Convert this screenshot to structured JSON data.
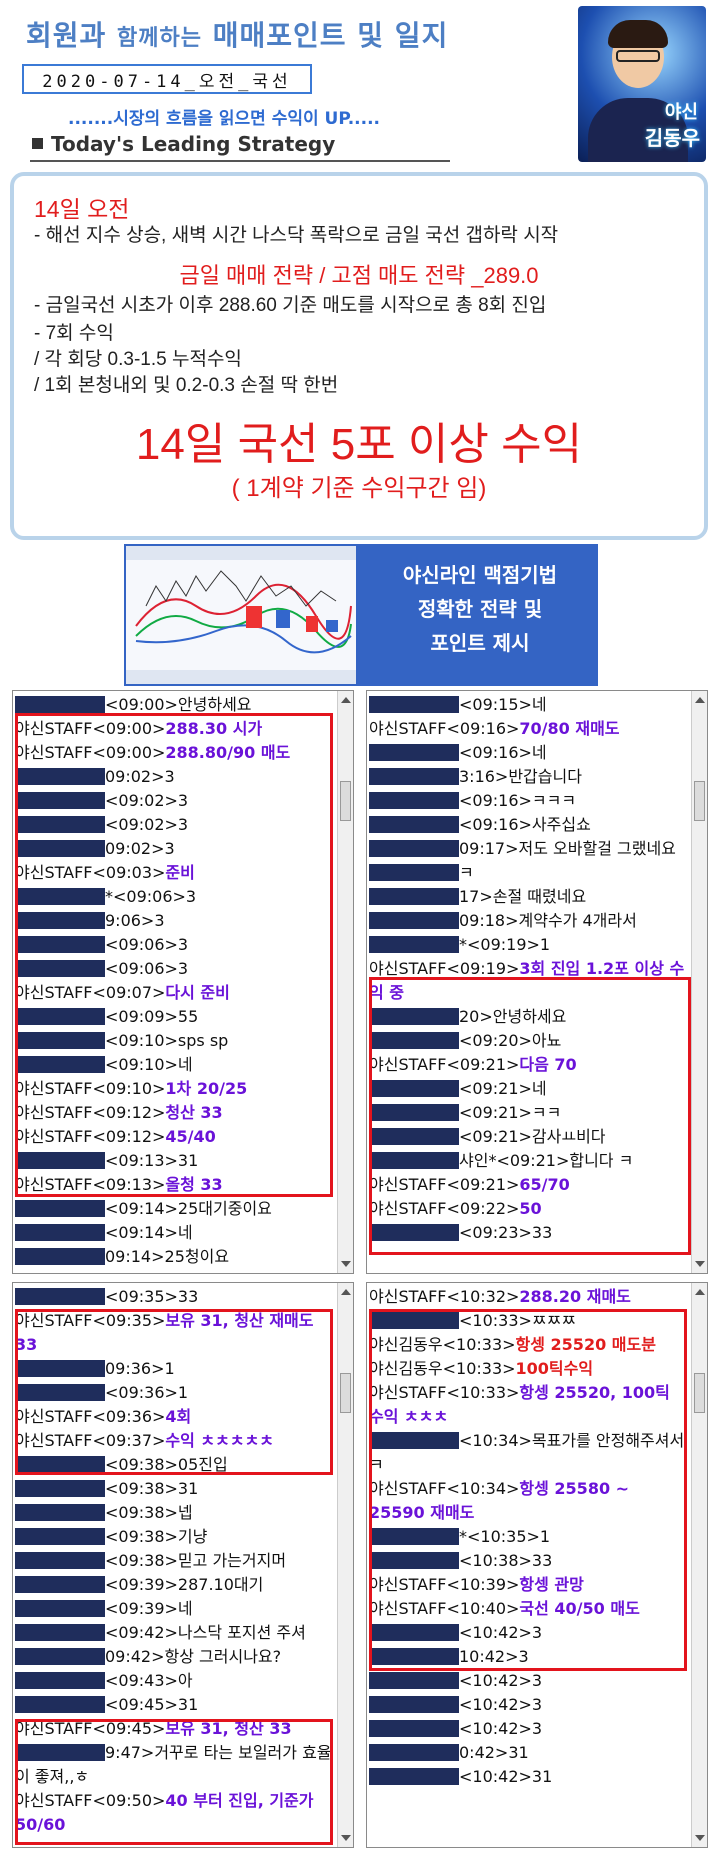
{
  "header": {
    "title_a": "회원과",
    "title_b": "함께하는",
    "title_c": "매매포인트 및 일지",
    "date": "2020-07-14_오전_국선",
    "slogan": ".......시장의 흐름을 읽으면 수익이 UP.....",
    "strategy": "Today's Leading Strategy",
    "avatar_name1": "야신",
    "avatar_name2": "김동우"
  },
  "strategy": {
    "date": "14일 오전",
    "note": "-    해선 지수 상승, 새벽 시간 나스닥 폭락으로 금일 국선 갭하락 시작",
    "heading": "금일 매매 전략   /   고점 매도 전략 _289.0",
    "lines": [
      "-    금일국선 시초가 이후 288.60 기준  매도를  시작으로 총 8회 진입",
      "-    7회 수익",
      "  / 각 회당 0.3-1.5 누적수익",
      "  / 1회 본청내외 및 0.2-0.3 손절 딱 한번"
    ],
    "big": "14일 국선 5포 이상 수익",
    "sub": "( 1계약 기준 수익구간 임)"
  },
  "banner": {
    "line1": "야신라인  맥점기법",
    "line2": "정확한 전략 및",
    "line3": "포인트 제시"
  },
  "panel1": [
    {
      "u": "",
      "t": "<09:00>안녕하세요",
      "m": "",
      "c": ""
    },
    {
      "u": "야신STAFF",
      "t": "<09:00>",
      "m": "288.30 시가",
      "c": "p"
    },
    {
      "u": "야신STAFF",
      "t": "<09:00>",
      "m": "288.80/90 매도",
      "c": "p"
    },
    {
      "u": "",
      "t": "09:02>3",
      "m": "",
      "c": ""
    },
    {
      "u": "",
      "t": "<09:02>3",
      "m": "",
      "c": ""
    },
    {
      "u": "",
      "t": "<09:02>3",
      "m": "",
      "c": ""
    },
    {
      "u": "",
      "t": "09:02>3",
      "m": "",
      "c": ""
    },
    {
      "u": "야신STAFF",
      "t": "<09:03>",
      "m": "준비",
      "c": "p"
    },
    {
      "u": "",
      "t": "*<09:06>3",
      "m": "",
      "c": ""
    },
    {
      "u": "",
      "t": "9:06>3",
      "m": "",
      "c": ""
    },
    {
      "u": "",
      "t": "<09:06>3",
      "m": "",
      "c": ""
    },
    {
      "u": "",
      "t": "<09:06>3",
      "m": "",
      "c": ""
    },
    {
      "u": "야신STAFF",
      "t": "<09:07>",
      "m": "다시 준비",
      "c": "p"
    },
    {
      "u": "",
      "t": "<09:09>55",
      "m": "",
      "c": ""
    },
    {
      "u": "",
      "t": "<09:10>sps sp",
      "m": "",
      "c": ""
    },
    {
      "u": "",
      "t": "<09:10>네",
      "m": "",
      "c": ""
    },
    {
      "u": "야신STAFF",
      "t": "<09:10>",
      "m": "1차 20/25",
      "c": "p"
    },
    {
      "u": "야신STAFF",
      "t": "<09:12>",
      "m": "청산 33",
      "c": "p"
    },
    {
      "u": "야신STAFF",
      "t": "<09:12>",
      "m": "45/40",
      "c": "p"
    },
    {
      "u": "",
      "t": "<09:13>31",
      "m": "",
      "c": ""
    },
    {
      "u": "야신STAFF",
      "t": "<09:13>",
      "m": "올청 33",
      "c": "p"
    },
    {
      "u": "",
      "t": "<09:14>25대기중이요",
      "m": "",
      "c": ""
    },
    {
      "u": "",
      "t": "<09:14>네",
      "m": "",
      "c": ""
    },
    {
      "u": "",
      "t": "09:14>25청이요",
      "m": "",
      "c": ""
    }
  ],
  "panel2": [
    {
      "u": "",
      "t": "<09:15>네",
      "m": "",
      "c": ""
    },
    {
      "u": "야신STAFF",
      "t": "<09:16>",
      "m": "70/80 재매도",
      "c": "p"
    },
    {
      "u": "",
      "t": "<09:16>네",
      "m": "",
      "c": ""
    },
    {
      "u": "",
      "t": "3:16>반갑습니다",
      "m": "",
      "c": ""
    },
    {
      "u": "",
      "t": "<09:16>ㅋㅋㅋ",
      "m": "",
      "c": ""
    },
    {
      "u": "",
      "t": "<09:16>사주십쇼",
      "m": "",
      "c": ""
    },
    {
      "u": "",
      "t": "09:17>저도 오바할걸 그랬네요",
      "m": "",
      "c": ""
    },
    {
      "u": "",
      "t": "ㅋ",
      "m": "",
      "c": ""
    },
    {
      "u": "",
      "t": "17>손절 때렸네요",
      "m": "",
      "c": ""
    },
    {
      "u": "",
      "t": "09:18>계약수가 4개라서",
      "m": "",
      "c": ""
    },
    {
      "u": "",
      "t": "*<09:19>1",
      "m": "",
      "c": ""
    },
    {
      "u": "야신STAFF",
      "t": "<09:19>",
      "m": "3회 진입 1.2포 이상 수익 중",
      "c": "p",
      "wrap": true
    },
    {
      "u": "",
      "t": "20>안녕하세요",
      "m": "",
      "c": ""
    },
    {
      "u": "",
      "t": "<09:20>아뇨",
      "m": "",
      "c": ""
    },
    {
      "u": "야신STAFF",
      "t": "<09:21>",
      "m": "다음 70",
      "c": "p"
    },
    {
      "u": "",
      "t": "<09:21>네",
      "m": "",
      "c": ""
    },
    {
      "u": "",
      "t": "<09:21>ㅋㅋ",
      "m": "",
      "c": ""
    },
    {
      "u": "",
      "t": "<09:21>감사ㅛ비다",
      "m": "",
      "c": ""
    },
    {
      "u": "",
      "t": "샤인*<09:21>합니다 ㅋ",
      "m": "",
      "c": ""
    },
    {
      "u": "야신STAFF",
      "t": "<09:21>",
      "m": "65/70",
      "c": "p"
    },
    {
      "u": "야신STAFF",
      "t": "<09:22>",
      "m": "50",
      "c": "p"
    },
    {
      "u": "",
      "t": "<09:23>33",
      "m": "",
      "c": ""
    }
  ],
  "panel3": [
    {
      "u": "",
      "t": "<09:35>33",
      "m": "",
      "c": ""
    },
    {
      "u": "야신STAFF",
      "t": "<09:35>",
      "m": "보유 31, 청산 재매도 33",
      "c": "p",
      "wrap": true
    },
    {
      "u": "",
      "t": "09:36>1",
      "m": "",
      "c": ""
    },
    {
      "u": "",
      "t": "<09:36>1",
      "m": "",
      "c": ""
    },
    {
      "u": "야신STAFF",
      "t": "<09:36>",
      "m": "4회",
      "c": "p"
    },
    {
      "u": "야신STAFF",
      "t": "<09:37>",
      "m": "수익 ㅊㅊㅊㅊㅊ",
      "c": "p"
    },
    {
      "u": "",
      "t": "<09:38>05진입",
      "m": "",
      "c": ""
    },
    {
      "u": "",
      "t": "<09:38>31",
      "m": "",
      "c": ""
    },
    {
      "u": "",
      "t": "<09:38>넵",
      "m": "",
      "c": ""
    },
    {
      "u": "",
      "t": "<09:38>기냥",
      "m": "",
      "c": ""
    },
    {
      "u": "",
      "t": "<09:38>믿고 가는거지머",
      "m": "",
      "c": ""
    },
    {
      "u": "",
      "t": "<09:39>287.10대기",
      "m": "",
      "c": ""
    },
    {
      "u": "",
      "t": "<09:39>네",
      "m": "",
      "c": ""
    },
    {
      "u": "",
      "t": "<09:42>나스닥 포지션 주셔",
      "m": "",
      "c": ""
    },
    {
      "u": "",
      "t": "09:42>항상 그러시나요?",
      "m": "",
      "c": ""
    },
    {
      "u": "",
      "t": "<09:43>아",
      "m": "",
      "c": ""
    },
    {
      "u": "",
      "t": "<09:45>31",
      "m": "",
      "c": ""
    },
    {
      "u": "야신STAFF",
      "t": "<09:45>",
      "m": "보유 31, 청산 33",
      "c": "p"
    },
    {
      "u": "",
      "t": "9:47>거꾸로 타는 보일러가 효율이 좋져,,ㅎ",
      "m": "",
      "c": "",
      "wrap": true
    },
    {
      "u": "야신STAFF",
      "t": "<09:50>",
      "m": "40 부터 진입, 기준가 50/60",
      "c": "p",
      "wrap": true
    }
  ],
  "panel4": [
    {
      "u": "야신STAFF",
      "t": "<10:32>",
      "m": "288.20 재매도",
      "c": "p"
    },
    {
      "u": "",
      "t": "<10:33>ㅉㅉㅉ",
      "m": "",
      "c": ""
    },
    {
      "u": "야신김동우",
      "t": "<10:33>",
      "m": "항셍 25520 매도분",
      "c": "r"
    },
    {
      "u": "야신김동우",
      "t": "<10:33>",
      "m": "100틱수익",
      "c": "r"
    },
    {
      "u": "야신STAFF",
      "t": "<10:33>",
      "m": "항셍 25520, 100틱 수익 ㅊㅊㅊ",
      "c": "p",
      "wrap": true
    },
    {
      "u": "",
      "t": "<10:34>목표가를 안정해주셔서 ㅋ",
      "m": "",
      "c": "",
      "wrap": true
    },
    {
      "u": "야신STAFF",
      "t": "<10:34>",
      "m": "항셍 25580 ~ 25590 재매도",
      "c": "p",
      "wrap": true
    },
    {
      "u": "",
      "t": "*<10:35>1",
      "m": "",
      "c": ""
    },
    {
      "u": "",
      "t": "<10:38>33",
      "m": "",
      "c": ""
    },
    {
      "u": "야신STAFF",
      "t": "<10:39>",
      "m": "항셍 관망",
      "c": "p"
    },
    {
      "u": "야신STAFF",
      "t": "<10:40>",
      "m": "국선 40/50 매도",
      "c": "p"
    },
    {
      "u": "",
      "t": "<10:42>3",
      "m": "",
      "c": ""
    },
    {
      "u": "",
      "t": "10:42>3",
      "m": "",
      "c": ""
    },
    {
      "u": "",
      "t": "<10:42>3",
      "m": "",
      "c": ""
    },
    {
      "u": "",
      "t": "<10:42>3",
      "m": "",
      "c": ""
    },
    {
      "u": "",
      "t": "<10:42>3",
      "m": "",
      "c": ""
    },
    {
      "u": "",
      "t": "0:42>31",
      "m": "",
      "c": ""
    },
    {
      "u": "",
      "t": "<10:42>31",
      "m": "",
      "c": ""
    }
  ],
  "colors": {
    "staff_msg": "#6a12d8",
    "red_msg": "#e11d1d",
    "highlight": "#e3141d",
    "masked": "#1f2d5c"
  }
}
